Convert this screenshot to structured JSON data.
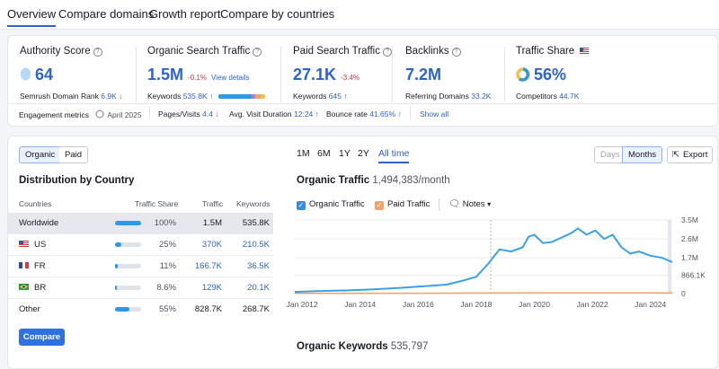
{
  "tabs": [
    "Overview",
    "Compare domains",
    "Growth report",
    "Compare by countries"
  ],
  "metrics": {
    "authority": {
      "title": "Authority Score",
      "value": "64",
      "sub_label": "Semrush Domain Rank",
      "sub_value": "6.9K",
      "sub_arrow": "↓"
    },
    "organic": {
      "title": "Organic Search Traffic",
      "value": "1.5M",
      "change": "-0.1%",
      "link": "View details",
      "sub_label": "Keywords",
      "sub_value": "535.8K",
      "sub_arrow": "↑"
    },
    "paid": {
      "title": "Paid Search Traffic",
      "value": "27.1K",
      "change": "-3.4%",
      "sub_label": "Keywords",
      "sub_value": "645",
      "sub_arrow": "↑"
    },
    "backlinks": {
      "title": "Backlinks",
      "value": "7.2M",
      "sub_label": "Referring Domains",
      "sub_value": "33.2K"
    },
    "share": {
      "title": "Traffic Share",
      "value": "56%",
      "sub_label": "Competitors",
      "sub_value": "44.7K"
    }
  },
  "engagement": {
    "label": "Engagement metrics",
    "date": "April 2025",
    "pages_label": "Pages/Visits",
    "pages_value": "4.4",
    "pages_arrow": "↓",
    "duration_label": "Avg. Visit Duration",
    "duration_value": "12:24",
    "duration_arrow": "↑",
    "bounce_label": "Bounce rate",
    "bounce_value": "41.65%",
    "bounce_arrow": "↑",
    "show_all": "Show all"
  },
  "toggle": {
    "organic": "Organic",
    "paid": "Paid"
  },
  "distribution": {
    "title": "Distribution by Country",
    "headers": [
      "Countries",
      "Traffic Share",
      "Traffic",
      "Keywords"
    ],
    "rows": [
      {
        "country": "Worldwide",
        "share": "100%",
        "share_frac": 1.0,
        "traffic": "1.5M",
        "keywords": "535.8K"
      },
      {
        "country": "US",
        "share": "25%",
        "share_frac": 0.25,
        "traffic": "370K",
        "keywords": "210.5K"
      },
      {
        "country": "FR",
        "share": "11%",
        "share_frac": 0.11,
        "traffic": "166.7K",
        "keywords": "36.5K"
      },
      {
        "country": "BR",
        "share": "8.6%",
        "share_frac": 0.086,
        "traffic": "129K",
        "keywords": "20.1K"
      },
      {
        "country": "Other",
        "share": "55%",
        "share_frac": 0.55,
        "traffic": "828.7K",
        "keywords": "268.7K"
      }
    ],
    "compare_button": "Compare"
  },
  "periods": [
    "1M",
    "6M",
    "1Y",
    "2Y",
    "All time"
  ],
  "view_toggle": {
    "days": "Days",
    "months": "Months"
  },
  "export": "Export",
  "organic_chart": {
    "title": "Organic Traffic",
    "value": "1,494,383/month",
    "legend": {
      "organic": "Organic Traffic",
      "paid": "Paid Traffic",
      "notes": "Notes"
    },
    "colors": {
      "organic": "#3aa1e6",
      "paid": "#f0a26a"
    }
  },
  "chart_data": {
    "type": "line",
    "title": "Organic Traffic",
    "x_ticks": [
      "Jan 2012",
      "Jan 2014",
      "Jan 2016",
      "Jan 2018",
      "Jan 2020",
      "Jan 2022",
      "Jan 2024"
    ],
    "y_ticks": [
      "3.5M",
      "2.6M",
      "1.7M",
      "866.1K",
      "0"
    ],
    "ylim": [
      0,
      3500000
    ],
    "series": [
      {
        "name": "Organic Traffic",
        "x": [
          2011.75,
          2012.5,
          2013.5,
          2014.5,
          2015.5,
          2016.5,
          2017.0,
          2017.5,
          2018.0,
          2018.4,
          2018.8,
          2019.2,
          2019.6,
          2019.8,
          2020.0,
          2020.3,
          2020.6,
          2021.0,
          2021.3,
          2021.5,
          2021.8,
          2022.1,
          2022.4,
          2022.7,
          2023.0,
          2023.3,
          2023.6,
          2024.0,
          2024.4,
          2024.75
        ],
        "y": [
          80000,
          120000,
          150000,
          200000,
          280000,
          380000,
          430000,
          600000,
          800000,
          1400000,
          2100000,
          2000000,
          2200000,
          2700000,
          2800000,
          2400000,
          2450000,
          2700000,
          2900000,
          3100000,
          2800000,
          3000000,
          2600000,
          2800000,
          2200000,
          1900000,
          2000000,
          1800000,
          1700000,
          1500000
        ]
      },
      {
        "name": "Paid Traffic",
        "x": [
          2011.75,
          2016.0,
          2018.0,
          2020.0,
          2022.0,
          2024.0,
          2024.75
        ],
        "y": [
          10000,
          15000,
          25000,
          30000,
          35000,
          30000,
          27100
        ]
      }
    ]
  },
  "keywords_section": {
    "title": "Organic Keywords",
    "value": "535,797"
  }
}
